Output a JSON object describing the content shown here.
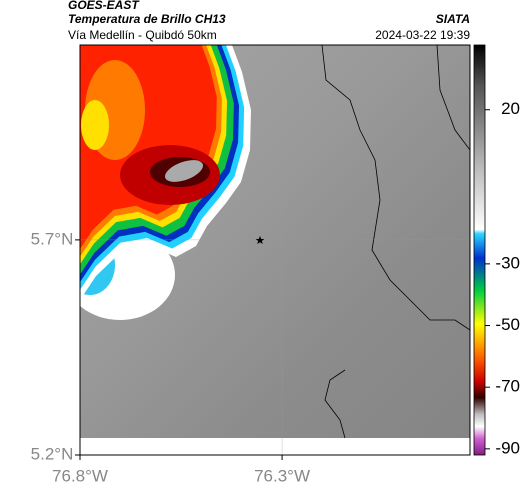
{
  "header": {
    "source": "GOES-EAST",
    "product": "Temperatura de Brillo CH13",
    "agency": "SIATA",
    "route": "Vía Medellín - Quibdó 50km",
    "timestamp": "2024-03-22 19:39"
  },
  "map": {
    "xlim": [
      -76.8,
      -75.835
    ],
    "ylim": [
      5.2,
      6.153
    ],
    "xticks": [
      {
        "value": -76.8,
        "label": "76.8°W"
      },
      {
        "value": -76.3,
        "label": "76.3°W"
      }
    ],
    "yticks": [
      {
        "value": 5.2,
        "label": "5.2°N"
      },
      {
        "value": 5.7,
        "label": "5.7°N"
      }
    ],
    "grid": true
  },
  "colorbar": {
    "lim": [
      -92,
      41
    ],
    "ticks": [
      20,
      -30,
      -50,
      -70,
      -90
    ]
  }
}
